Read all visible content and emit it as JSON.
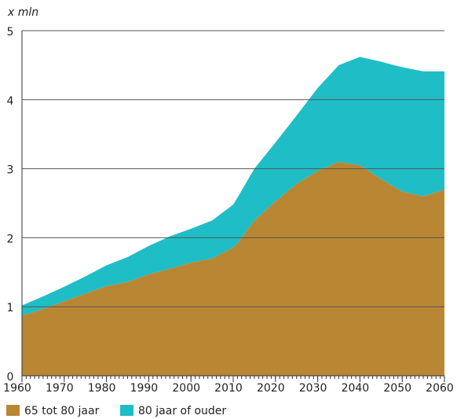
{
  "chart_data": {
    "type": "stacked_area",
    "y_axis_label": "x mln",
    "x": [
      1960,
      1965,
      1970,
      1975,
      1980,
      1985,
      1990,
      1995,
      2000,
      2005,
      2010,
      2011,
      2015,
      2020,
      2025,
      2030,
      2035,
      2040,
      2045,
      2050,
      2055,
      2060
    ],
    "series": [
      {
        "name": "65 tot 80 jaar",
        "color": "#b98734",
        "values": [
          0.87,
          0.97,
          1.08,
          1.19,
          1.3,
          1.36,
          1.47,
          1.55,
          1.64,
          1.7,
          1.86,
          1.92,
          2.25,
          2.53,
          2.78,
          2.97,
          3.1,
          3.05,
          2.85,
          2.67,
          2.6,
          2.7
        ]
      },
      {
        "name": "80 jaar of ouder",
        "color": "#1fbdc6",
        "values": [
          0.15,
          0.18,
          0.21,
          0.25,
          0.3,
          0.36,
          0.41,
          0.47,
          0.49,
          0.55,
          0.62,
          0.66,
          0.75,
          0.85,
          0.99,
          1.2,
          1.4,
          1.57,
          1.7,
          1.8,
          1.81,
          1.71
        ]
      }
    ],
    "xlim": [
      1960,
      2060
    ],
    "xticks": [
      1960,
      1970,
      1980,
      1990,
      2000,
      2010,
      2020,
      2030,
      2040,
      2050,
      2060
    ],
    "ylim": [
      0,
      5
    ],
    "yticks": [
      0,
      1,
      2,
      3,
      4,
      5
    ],
    "grid": true
  }
}
